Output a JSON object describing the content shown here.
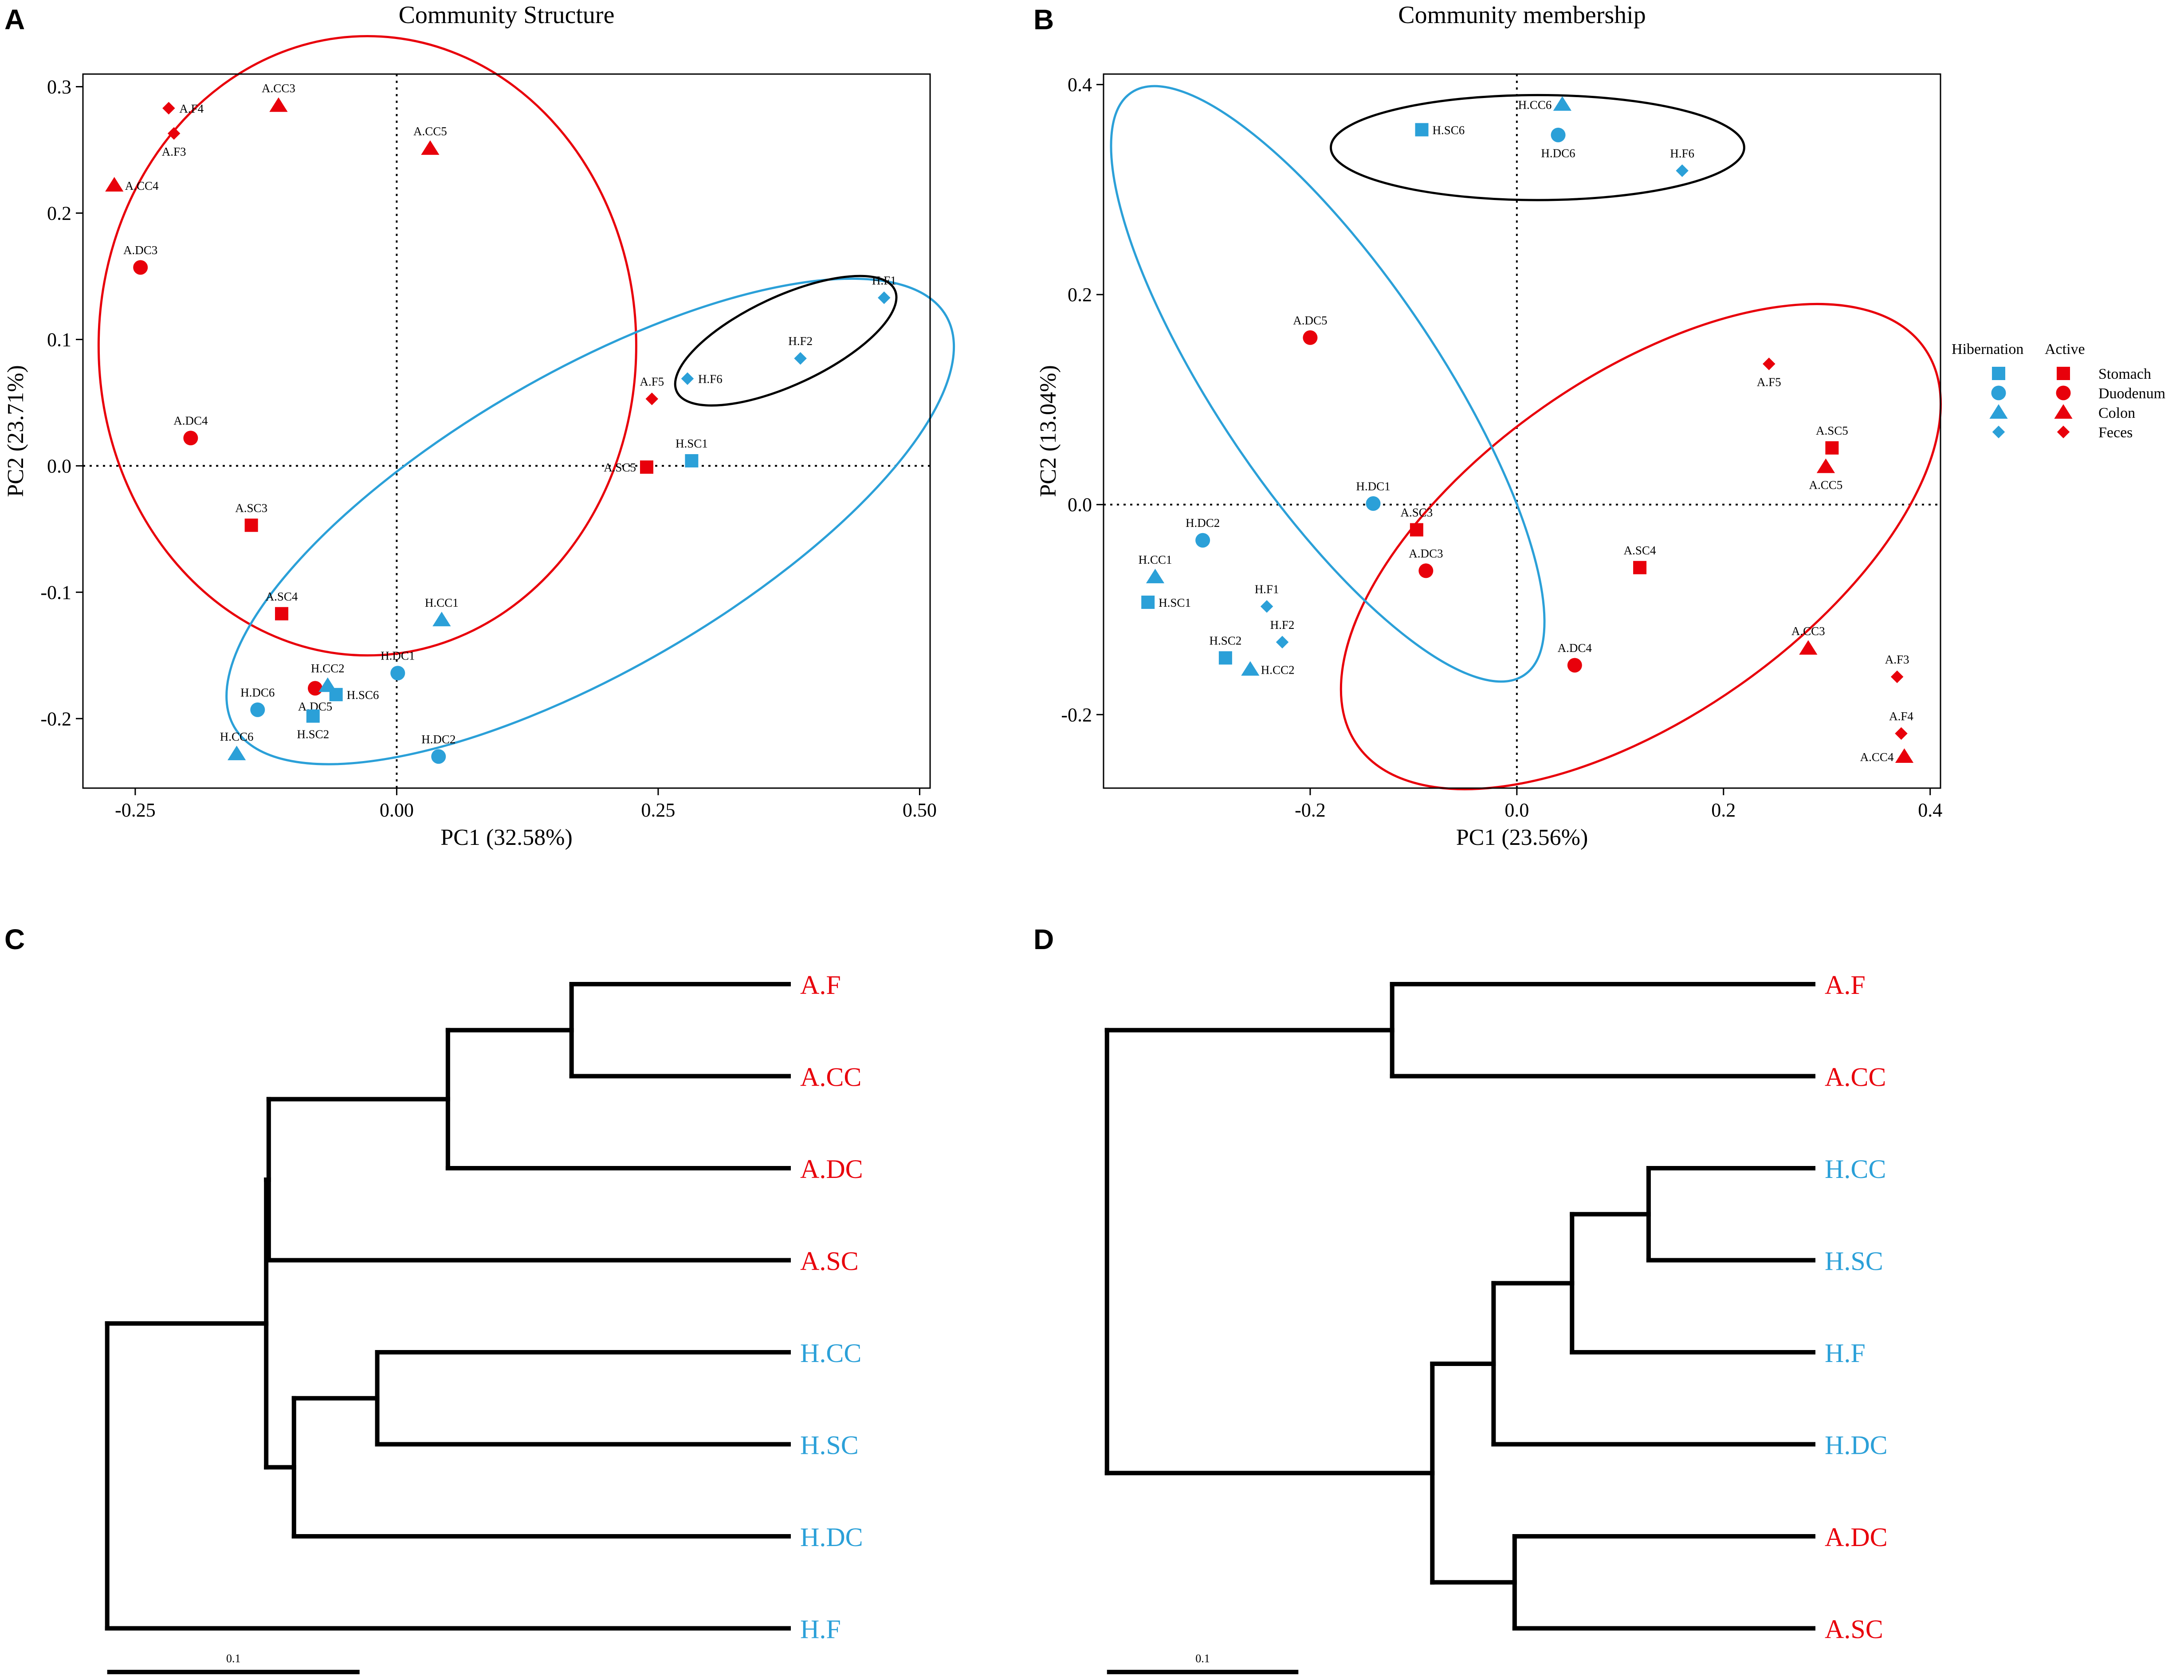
{
  "colors": {
    "hibernation": "#2ba0d8",
    "active": "#e8000b",
    "cluster": "#000000",
    "axis": "#000000"
  },
  "panels": {
    "a": "A",
    "b": "B",
    "c": "C",
    "d": "D"
  },
  "legend": {
    "hibernation_label": "Hibernation",
    "active_label": "Active",
    "items": [
      {
        "label": "Stomach",
        "shape": "square"
      },
      {
        "label": "Duodenum",
        "shape": "circle"
      },
      {
        "label": "Colon",
        "shape": "triangle"
      },
      {
        "label": "Feces",
        "shape": "diamond"
      }
    ]
  },
  "chart_data": [
    {
      "id": "A",
      "type": "scatter",
      "title": "Community Structure",
      "xlabel": "PC1 (32.58%)",
      "ylabel": "PC2 (23.71%)",
      "xlim": [
        -0.3,
        0.51
      ],
      "ylim": [
        -0.255,
        0.31
      ],
      "xticks": [
        -0.25,
        0.0,
        0.25,
        0.5
      ],
      "xtick_labels": [
        "-0.25",
        "0.00",
        "0.25",
        "0.50"
      ],
      "yticks": [
        -0.2,
        -0.1,
        0.0,
        0.1,
        0.2,
        0.3
      ],
      "ytick_labels": [
        "-0.2",
        "-0.1",
        "0.0",
        "0.1",
        "0.2",
        "0.3"
      ],
      "points": [
        {
          "label": "A.F4",
          "x": -0.218,
          "y": 0.283,
          "group": "active",
          "shape": "diamond",
          "lpos": "right"
        },
        {
          "label": "A.CC3",
          "x": -0.113,
          "y": 0.285,
          "group": "active",
          "shape": "triangle",
          "lpos": "top"
        },
        {
          "label": "A.F3",
          "x": -0.213,
          "y": 0.263,
          "group": "active",
          "shape": "diamond",
          "lpos": "bottom"
        },
        {
          "label": "A.CC5",
          "x": 0.032,
          "y": 0.251,
          "group": "active",
          "shape": "triangle",
          "lpos": "top"
        },
        {
          "label": "A.CC4",
          "x": -0.27,
          "y": 0.222,
          "group": "active",
          "shape": "triangle",
          "lpos": "right"
        },
        {
          "label": "A.DC3",
          "x": -0.245,
          "y": 0.157,
          "group": "active",
          "shape": "circle",
          "lpos": "top"
        },
        {
          "label": "A.F5",
          "x": 0.244,
          "y": 0.053,
          "group": "active",
          "shape": "diamond",
          "lpos": "top"
        },
        {
          "label": "A.DC4",
          "x": -0.197,
          "y": 0.022,
          "group": "active",
          "shape": "circle",
          "lpos": "top"
        },
        {
          "label": "A.SC5",
          "x": 0.239,
          "y": -0.001,
          "group": "active",
          "shape": "square",
          "lpos": "left"
        },
        {
          "label": "A.SC3",
          "x": -0.139,
          "y": -0.047,
          "group": "active",
          "shape": "square",
          "lpos": "top"
        },
        {
          "label": "A.SC4",
          "x": -0.11,
          "y": -0.117,
          "group": "active",
          "shape": "square",
          "lpos": "top"
        },
        {
          "label": "A.DC5",
          "x": -0.078,
          "y": -0.176,
          "group": "active",
          "shape": "circle",
          "lpos": "bottom"
        },
        {
          "label": "H.F1",
          "x": 0.466,
          "y": 0.133,
          "group": "hibernation",
          "shape": "diamond",
          "lpos": "top"
        },
        {
          "label": "H.F2",
          "x": 0.386,
          "y": 0.085,
          "group": "hibernation",
          "shape": "diamond",
          "lpos": "top"
        },
        {
          "label": "H.F6",
          "x": 0.278,
          "y": 0.069,
          "group": "hibernation",
          "shape": "diamond",
          "lpos": "right"
        },
        {
          "label": "H.SC1",
          "x": 0.282,
          "y": 0.004,
          "group": "hibernation",
          "shape": "square",
          "lpos": "top"
        },
        {
          "label": "H.CC1",
          "x": 0.043,
          "y": -0.122,
          "group": "hibernation",
          "shape": "triangle",
          "lpos": "top"
        },
        {
          "label": "H.DC1",
          "x": 0.001,
          "y": -0.164,
          "group": "hibernation",
          "shape": "circle",
          "lpos": "top"
        },
        {
          "label": "H.CC2",
          "x": -0.066,
          "y": -0.174,
          "group": "hibernation",
          "shape": "triangle",
          "lpos": "top"
        },
        {
          "label": "H.SC6",
          "x": -0.058,
          "y": -0.181,
          "group": "hibernation",
          "shape": "square",
          "lpos": "right"
        },
        {
          "label": "H.DC6",
          "x": -0.133,
          "y": -0.193,
          "group": "hibernation",
          "shape": "circle",
          "lpos": "top"
        },
        {
          "label": "H.SC2",
          "x": -0.08,
          "y": -0.198,
          "group": "hibernation",
          "shape": "square",
          "lpos": "bottom"
        },
        {
          "label": "H.DC2",
          "x": 0.04,
          "y": -0.23,
          "group": "hibernation",
          "shape": "circle",
          "lpos": "top"
        },
        {
          "label": "H.CC6",
          "x": -0.153,
          "y": -0.228,
          "group": "hibernation",
          "shape": "triangle",
          "lpos": "top"
        }
      ],
      "ellipses": [
        {
          "group": "active",
          "cx": -0.028,
          "cy": 0.095,
          "rx": 0.257,
          "ry": 0.245,
          "angle": 0
        },
        {
          "group": "hibernation",
          "cx": 0.185,
          "cy": -0.044,
          "rx": 0.393,
          "ry": 0.118,
          "angle": 30
        },
        {
          "group": "cluster",
          "cx": 0.372,
          "cy": 0.099,
          "rx": 0.115,
          "ry": 0.035,
          "angle": 25
        }
      ]
    },
    {
      "id": "B",
      "type": "scatter",
      "title": "Community membership",
      "xlabel": "PC1 (23.56%)",
      "ylabel": "PC2 (13.04%)",
      "xlim": [
        -0.4,
        0.41
      ],
      "ylim": [
        -0.27,
        0.41
      ],
      "xticks": [
        -0.2,
        0.0,
        0.2,
        0.4
      ],
      "xtick_labels": [
        "-0.2",
        "0.0",
        "0.2",
        "0.4"
      ],
      "yticks": [
        -0.2,
        0.0,
        0.2,
        0.4
      ],
      "ytick_labels": [
        "-0.2",
        "0.0",
        "0.2",
        "0.4"
      ],
      "points": [
        {
          "label": "H.CC6",
          "x": 0.044,
          "y": 0.381,
          "group": "hibernation",
          "shape": "triangle",
          "lpos": "left"
        },
        {
          "label": "H.SC6",
          "x": -0.092,
          "y": 0.357,
          "group": "hibernation",
          "shape": "square",
          "lpos": "right"
        },
        {
          "label": "H.DC6",
          "x": 0.04,
          "y": 0.352,
          "group": "hibernation",
          "shape": "circle",
          "lpos": "bottom"
        },
        {
          "label": "H.F6",
          "x": 0.16,
          "y": 0.318,
          "group": "hibernation",
          "shape": "diamond",
          "lpos": "top"
        },
        {
          "label": "H.DC1",
          "x": -0.139,
          "y": 0.001,
          "group": "hibernation",
          "shape": "circle",
          "lpos": "top"
        },
        {
          "label": "H.DC2",
          "x": -0.304,
          "y": -0.034,
          "group": "hibernation",
          "shape": "circle",
          "lpos": "top"
        },
        {
          "label": "H.CC1",
          "x": -0.35,
          "y": -0.069,
          "group": "hibernation",
          "shape": "triangle",
          "lpos": "top"
        },
        {
          "label": "H.SC1",
          "x": -0.357,
          "y": -0.093,
          "group": "hibernation",
          "shape": "square",
          "lpos": "right"
        },
        {
          "label": "H.F1",
          "x": -0.242,
          "y": -0.097,
          "group": "hibernation",
          "shape": "diamond",
          "lpos": "top"
        },
        {
          "label": "H.F2",
          "x": -0.227,
          "y": -0.131,
          "group": "hibernation",
          "shape": "diamond",
          "lpos": "top"
        },
        {
          "label": "H.SC2",
          "x": -0.282,
          "y": -0.146,
          "group": "hibernation",
          "shape": "square",
          "lpos": "top"
        },
        {
          "label": "H.CC2",
          "x": -0.258,
          "y": -0.157,
          "group": "hibernation",
          "shape": "triangle",
          "lpos": "right"
        },
        {
          "label": "A.DC5",
          "x": -0.2,
          "y": 0.159,
          "group": "active",
          "shape": "circle",
          "lpos": "top"
        },
        {
          "label": "A.F5",
          "x": 0.244,
          "y": 0.134,
          "group": "active",
          "shape": "diamond",
          "lpos": "bottom"
        },
        {
          "label": "A.SC5",
          "x": 0.305,
          "y": 0.054,
          "group": "active",
          "shape": "square",
          "lpos": "top"
        },
        {
          "label": "A.CC5",
          "x": 0.299,
          "y": 0.036,
          "group": "active",
          "shape": "triangle",
          "lpos": "bottom"
        },
        {
          "label": "A.SC3",
          "x": -0.097,
          "y": -0.024,
          "group": "active",
          "shape": "square",
          "lpos": "top"
        },
        {
          "label": "A.DC3",
          "x": -0.088,
          "y": -0.063,
          "group": "active",
          "shape": "circle",
          "lpos": "top"
        },
        {
          "label": "A.SC4",
          "x": 0.119,
          "y": -0.06,
          "group": "active",
          "shape": "square",
          "lpos": "top"
        },
        {
          "label": "A.CC3",
          "x": 0.282,
          "y": -0.137,
          "group": "active",
          "shape": "triangle",
          "lpos": "top"
        },
        {
          "label": "A.DC4",
          "x": 0.056,
          "y": -0.153,
          "group": "active",
          "shape": "circle",
          "lpos": "top"
        },
        {
          "label": "A.F3",
          "x": 0.368,
          "y": -0.164,
          "group": "active",
          "shape": "diamond",
          "lpos": "top"
        },
        {
          "label": "A.F4",
          "x": 0.372,
          "y": -0.218,
          "group": "active",
          "shape": "diamond",
          "lpos": "top"
        },
        {
          "label": "A.CC4",
          "x": 0.375,
          "y": -0.24,
          "group": "active",
          "shape": "triangle",
          "lpos": "left"
        }
      ],
      "ellipses": [
        {
          "group": "active",
          "cx": 0.12,
          "cy": -0.04,
          "rx": 0.335,
          "ry": 0.162,
          "angle": 35
        },
        {
          "group": "hibernation",
          "cx": -0.183,
          "cy": 0.115,
          "rx": 0.34,
          "ry": 0.105,
          "angle": -56
        },
        {
          "group": "cluster",
          "cx": 0.02,
          "cy": 0.34,
          "rx": 0.2,
          "ry": 0.05,
          "angle": 0
        }
      ]
    },
    {
      "id": "C",
      "type": "dendrogram",
      "scale_label": "0.1",
      "scale_value": 0.1,
      "leaves": [
        {
          "label": "A.F",
          "group": "active"
        },
        {
          "label": "A.CC",
          "group": "active"
        },
        {
          "label": "A.DC",
          "group": "active"
        },
        {
          "label": "A.SC",
          "group": "active"
        },
        {
          "label": "H.CC",
          "group": "hibernation"
        },
        {
          "label": "H.SC",
          "group": "hibernation"
        },
        {
          "label": "H.DC",
          "group": "hibernation"
        },
        {
          "label": "H.F",
          "group": "hibernation"
        }
      ],
      "nodes": [
        {
          "children": [
            0,
            1
          ],
          "height": 0.086
        },
        {
          "children": [
            8,
            2
          ],
          "height": 0.135
        },
        {
          "children": [
            4,
            5
          ],
          "height": 0.163
        },
        {
          "children": [
            10,
            6
          ],
          "height": 0.196
        },
        {
          "children": [
            9,
            3
          ],
          "height": 0.206
        },
        {
          "children": [
            12,
            11
          ],
          "height": 0.207
        },
        {
          "children": [
            13,
            7
          ],
          "height": 0.27
        }
      ]
    },
    {
      "id": "D",
      "type": "dendrogram",
      "scale_label": "0.1",
      "scale_value": 0.1,
      "leaves": [
        {
          "label": "A.F",
          "group": "active"
        },
        {
          "label": "A.CC",
          "group": "active"
        },
        {
          "label": "H.CC",
          "group": "hibernation"
        },
        {
          "label": "H.SC",
          "group": "hibernation"
        },
        {
          "label": "H.F",
          "group": "hibernation"
        },
        {
          "label": "H.DC",
          "group": "hibernation"
        },
        {
          "label": "A.DC",
          "group": "active"
        },
        {
          "label": "A.SC",
          "group": "active"
        }
      ],
      "nodes": [
        {
          "children": [
            2,
            3
          ],
          "height": 0.086
        },
        {
          "children": [
            8,
            4
          ],
          "height": 0.126
        },
        {
          "children": [
            6,
            7
          ],
          "height": 0.156
        },
        {
          "children": [
            9,
            5
          ],
          "height": 0.167
        },
        {
          "children": [
            0,
            1
          ],
          "height": 0.22
        },
        {
          "children": [
            11,
            10
          ],
          "height": 0.199
        },
        {
          "children": [
            12,
            13
          ],
          "height": 0.369
        }
      ]
    }
  ]
}
